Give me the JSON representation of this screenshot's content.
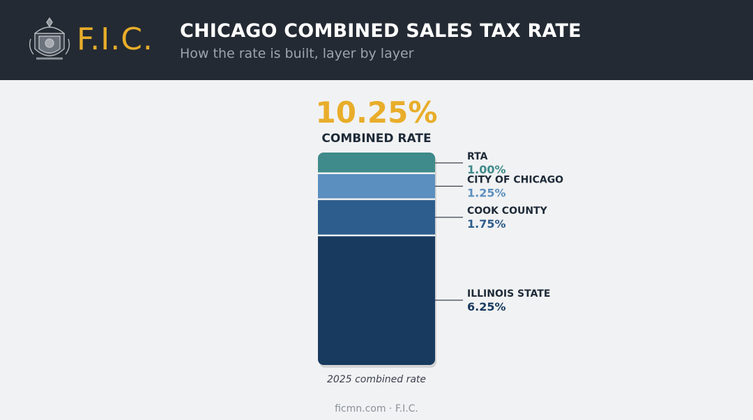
{
  "header": {
    "brand": "F.I.C.",
    "title": "CHICAGO COMBINED SALES TAX RATE",
    "subtitle": "How the rate is built, layer by layer"
  },
  "summary": {
    "rate": "10.25%",
    "label": "COMBINED RATE"
  },
  "caption": "2025 combined rate",
  "footer": "ficmn.com · F.I.C.",
  "colors": {
    "brand_gold": "#e8ad2a",
    "rta": "#3f8a8a",
    "city": "#5b8fbf",
    "county": "#2d5d8c",
    "state": "#173a5e"
  },
  "chart_data": {
    "type": "bar",
    "stacked": true,
    "unit": "%",
    "total": 10.25,
    "categories": [
      "RTA",
      "CITY OF CHICAGO",
      "COOK COUNTY",
      "ILLINOIS STATE"
    ],
    "values": [
      1.0,
      1.25,
      1.75,
      6.25
    ],
    "value_labels": [
      "1.00%",
      "1.25%",
      "1.75%",
      "6.25%"
    ],
    "colors": [
      "#3f8a8a",
      "#5b8fbf",
      "#2d5d8c",
      "#173a5e"
    ],
    "label_colors": [
      "#3f8a8a",
      "#5b8fbf",
      "#2d5d8c",
      "#173a5e"
    ],
    "order": "top-to-bottom",
    "legend_position": "right"
  }
}
